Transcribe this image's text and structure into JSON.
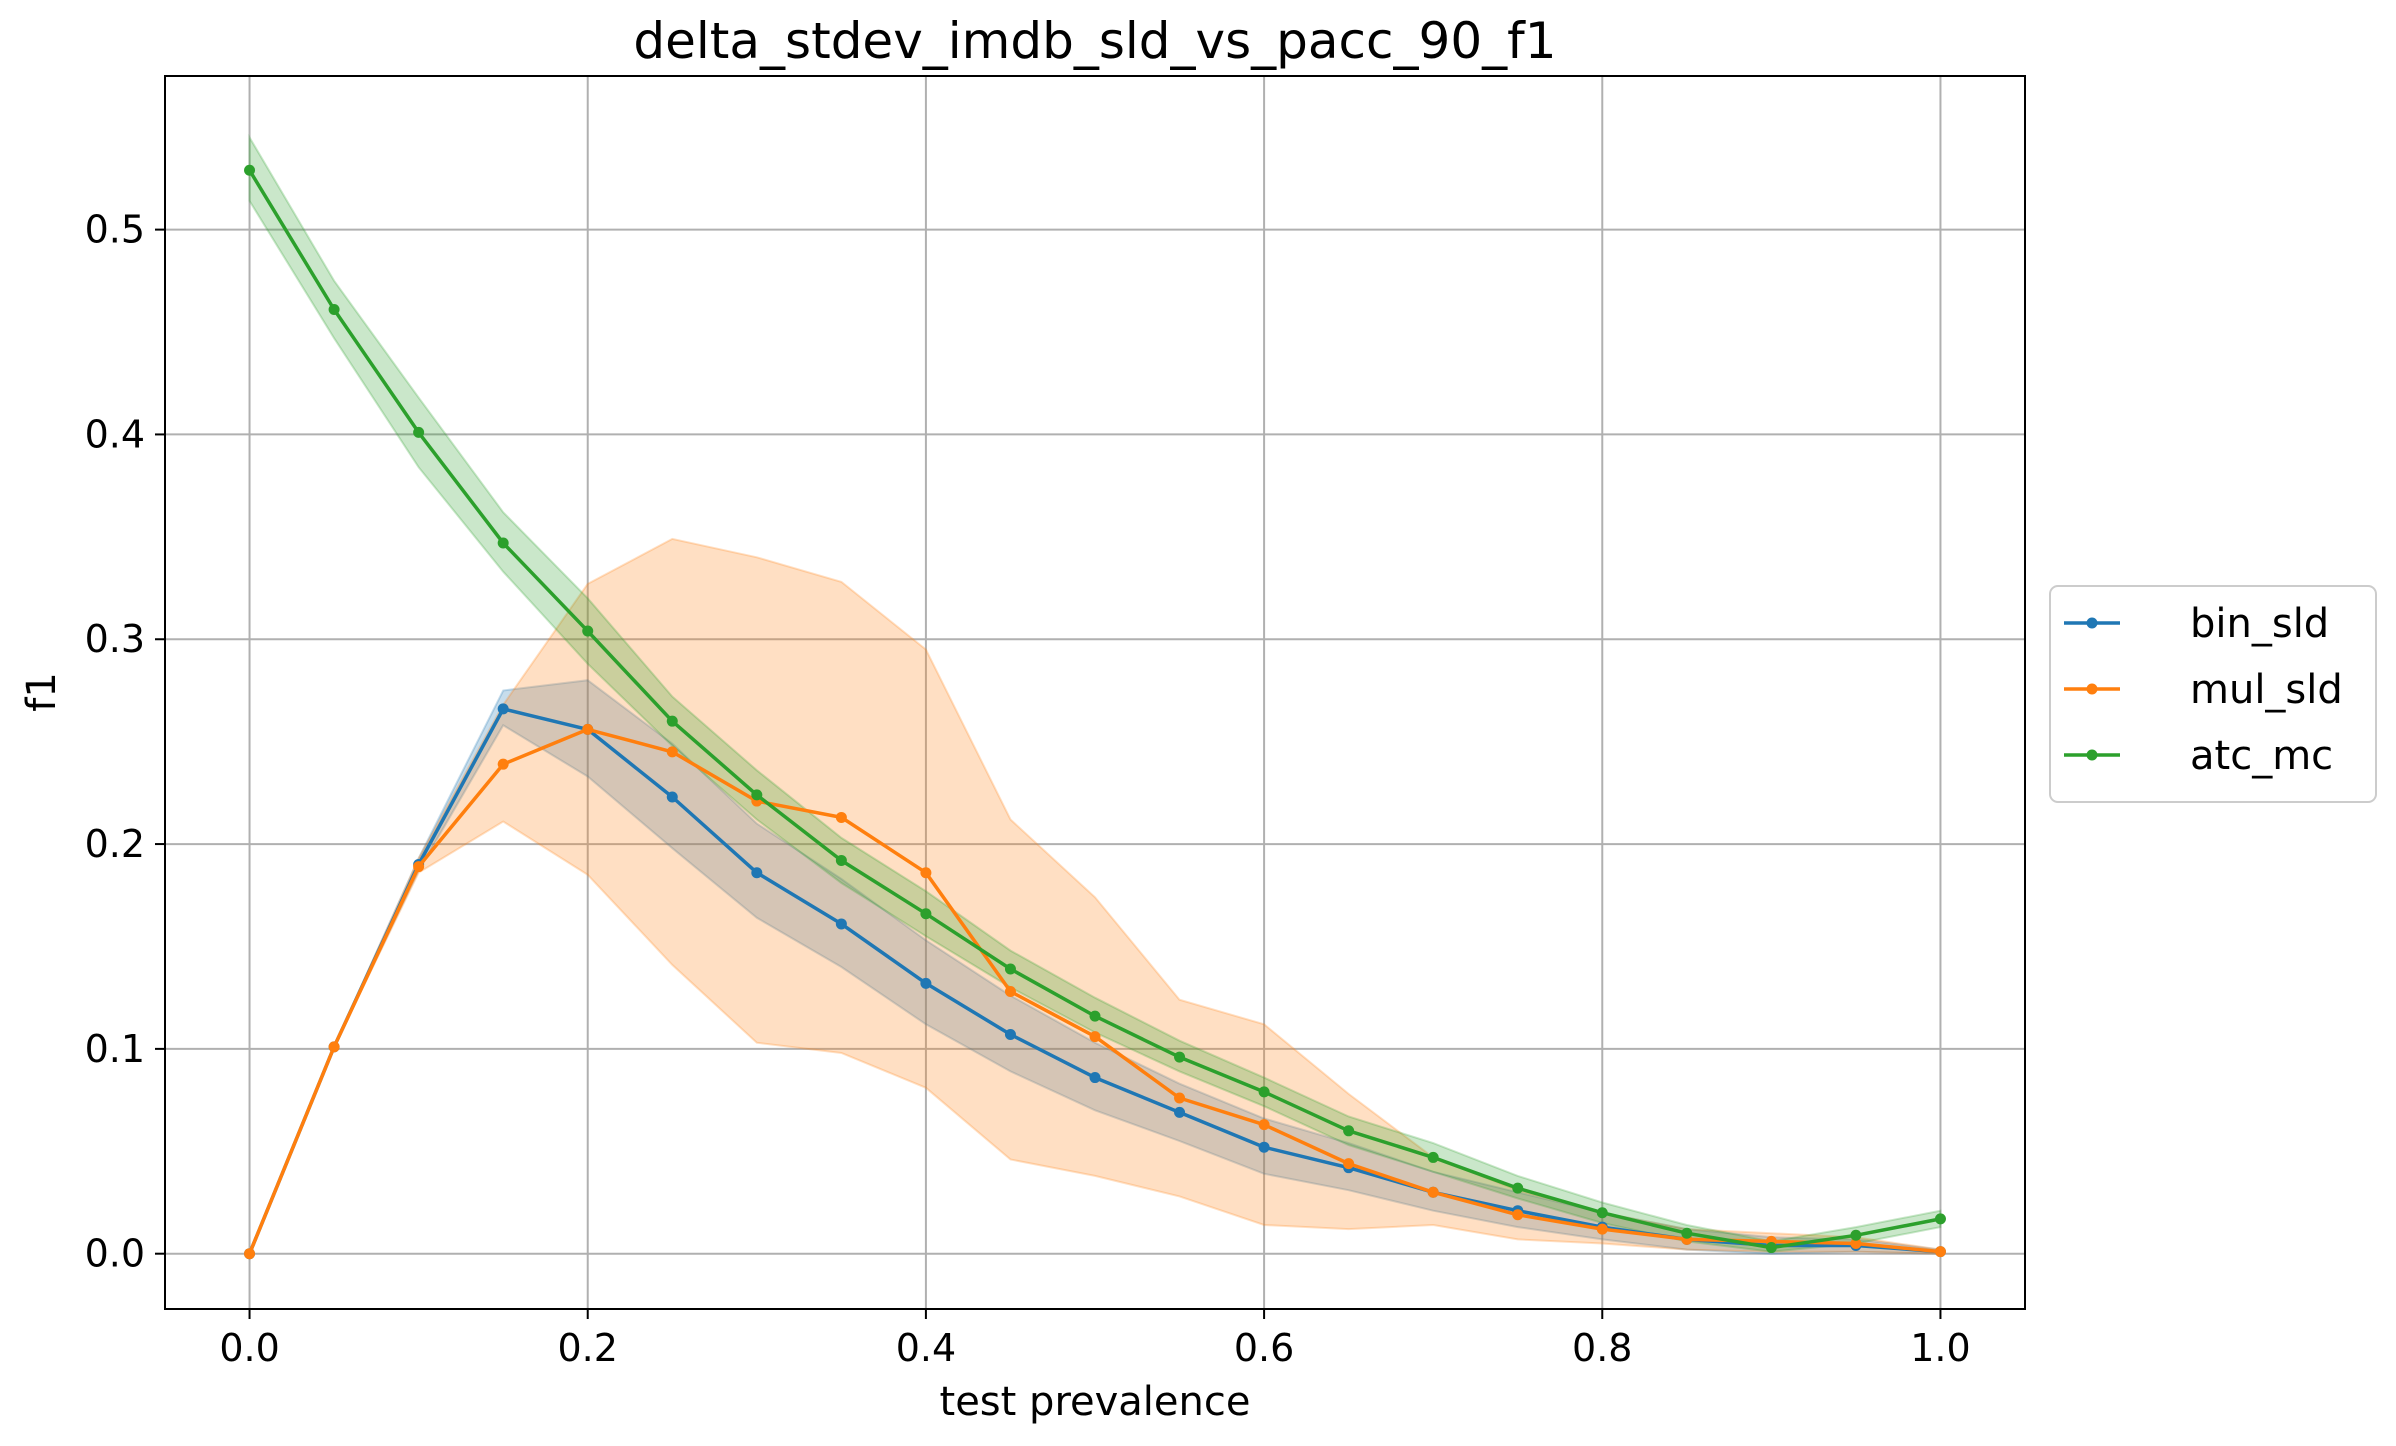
{
  "chart_data": {
    "type": "line",
    "title": "delta_stdev_imdb_sld_vs_pacc_90_f1",
    "xlabel": "test prevalence",
    "ylabel": "f1",
    "xlim": [
      -0.05,
      1.05
    ],
    "ylim": [
      -0.027,
      0.575
    ],
    "xticks": [
      0.0,
      0.2,
      0.4,
      0.6,
      0.8,
      1.0
    ],
    "xtick_labels": [
      "0.0",
      "0.2",
      "0.4",
      "0.6",
      "0.8",
      "1.0"
    ],
    "yticks": [
      0.0,
      0.1,
      0.2,
      0.3,
      0.4,
      0.5
    ],
    "ytick_labels": [
      "0.0",
      "0.1",
      "0.2",
      "0.3",
      "0.4",
      "0.5"
    ],
    "grid": true,
    "legend_position": "right, outside plot",
    "x": [
      0.0,
      0.05,
      0.1,
      0.15,
      0.2,
      0.25,
      0.3,
      0.35,
      0.4,
      0.45,
      0.5,
      0.55,
      0.6,
      0.65,
      0.7,
      0.75,
      0.8,
      0.85,
      0.9,
      0.95,
      1.0
    ],
    "series": [
      {
        "name": "bin_sld",
        "color": "#1f77b4",
        "values": [
          0.0,
          0.101,
          0.19,
          0.266,
          0.256,
          0.223,
          0.186,
          0.161,
          0.132,
          0.107,
          0.086,
          0.069,
          0.052,
          0.042,
          0.03,
          0.021,
          0.013,
          0.007,
          0.004,
          0.004,
          0.001
        ],
        "lower": [
          0.0,
          0.101,
          0.187,
          0.258,
          0.233,
          0.198,
          0.164,
          0.14,
          0.112,
          0.089,
          0.07,
          0.055,
          0.039,
          0.031,
          0.021,
          0.013,
          0.007,
          0.002,
          0.0,
          0.001,
          0.0
        ],
        "upper": [
          0.0,
          0.101,
          0.193,
          0.275,
          0.28,
          0.249,
          0.21,
          0.183,
          0.153,
          0.126,
          0.103,
          0.083,
          0.066,
          0.054,
          0.04,
          0.03,
          0.02,
          0.012,
          0.008,
          0.007,
          0.002
        ]
      },
      {
        "name": "mul_sld",
        "color": "#ff7f0e",
        "values": [
          0.0,
          0.101,
          0.189,
          0.239,
          0.256,
          0.245,
          0.221,
          0.213,
          0.186,
          0.128,
          0.106,
          0.076,
          0.063,
          0.044,
          0.03,
          0.019,
          0.012,
          0.007,
          0.006,
          0.005,
          0.001
        ],
        "lower": [
          0.0,
          0.101,
          0.186,
          0.211,
          0.185,
          0.141,
          0.103,
          0.098,
          0.081,
          0.046,
          0.038,
          0.028,
          0.014,
          0.012,
          0.014,
          0.007,
          0.005,
          0.002,
          0.001,
          0.001,
          0.0
        ],
        "upper": [
          0.0,
          0.101,
          0.193,
          0.268,
          0.327,
          0.349,
          0.34,
          0.328,
          0.295,
          0.212,
          0.174,
          0.124,
          0.112,
          0.078,
          0.047,
          0.031,
          0.02,
          0.012,
          0.01,
          0.008,
          0.002
        ]
      },
      {
        "name": "atc_mc",
        "color": "#2ca02c",
        "values": [
          0.529,
          0.461,
          0.401,
          0.347,
          0.304,
          0.26,
          0.224,
          0.192,
          0.166,
          0.139,
          0.116,
          0.096,
          0.079,
          0.06,
          0.047,
          0.032,
          0.02,
          0.01,
          0.003,
          0.009,
          0.017
        ],
        "lower": [
          0.514,
          0.447,
          0.384,
          0.333,
          0.288,
          0.248,
          0.212,
          0.181,
          0.155,
          0.13,
          0.108,
          0.089,
          0.072,
          0.053,
          0.04,
          0.027,
          0.015,
          0.006,
          0.001,
          0.005,
          0.013
        ],
        "upper": [
          0.545,
          0.475,
          0.418,
          0.362,
          0.32,
          0.272,
          0.236,
          0.203,
          0.177,
          0.148,
          0.125,
          0.104,
          0.086,
          0.067,
          0.054,
          0.038,
          0.025,
          0.014,
          0.006,
          0.013,
          0.021
        ]
      }
    ]
  }
}
